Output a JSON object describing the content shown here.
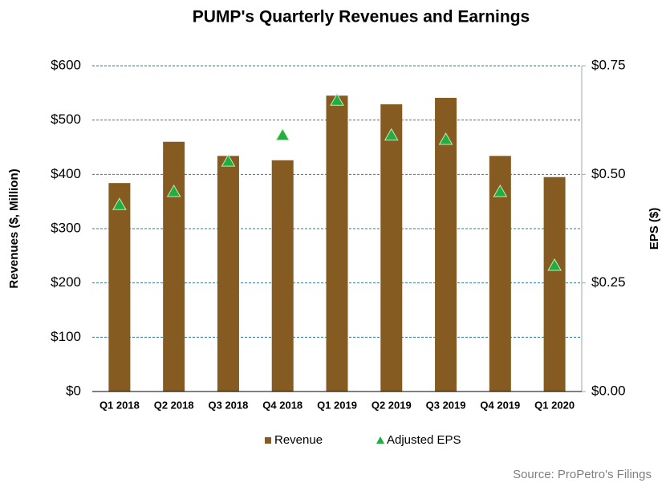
{
  "chart_data": {
    "type": "bar",
    "title": "PUMP's Quarterly Revenues and Earnings",
    "y_label": "Revenues ($, Million)",
    "y2_label": "EPS ($)",
    "source": "Source: ProPetro's Filings",
    "categories": [
      "Q1 2018",
      "Q2 2018",
      "Q3 2018",
      "Q4 2018",
      "Q1 2019",
      "Q2 2019",
      "Q3 2019",
      "Q4 2019",
      "Q1 2020"
    ],
    "series": [
      {
        "name": "Revenue",
        "type": "bar",
        "color": "#865b22",
        "values": [
          384,
          460,
          434,
          426,
          545,
          529,
          541,
          434,
          395
        ]
      },
      {
        "name": "Adjusted EPS",
        "type": "scatter",
        "axis": "y2",
        "color": "#1fae3f",
        "values": [
          0.43,
          0.46,
          0.53,
          0.59,
          0.67,
          0.59,
          0.58,
          0.46,
          0.29
        ]
      }
    ],
    "ylim": [
      0,
      600
    ],
    "yticks": [
      {
        "value": 0,
        "label": "$0"
      },
      {
        "value": 100,
        "label": "$100"
      },
      {
        "value": 200,
        "label": "$200"
      },
      {
        "value": 300,
        "label": "$300"
      },
      {
        "value": 400,
        "label": "$400"
      },
      {
        "value": 500,
        "label": "$500"
      },
      {
        "value": 600,
        "label": "$600"
      }
    ],
    "y2lim": [
      0,
      0.75
    ],
    "y2ticks": [
      {
        "value": 0,
        "label": "$0.00"
      },
      {
        "value": 0.25,
        "label": "$0.25"
      },
      {
        "value": 0.5,
        "label": "$0.50"
      },
      {
        "value": 0.75,
        "label": "$0.75"
      }
    ],
    "grid": true
  }
}
